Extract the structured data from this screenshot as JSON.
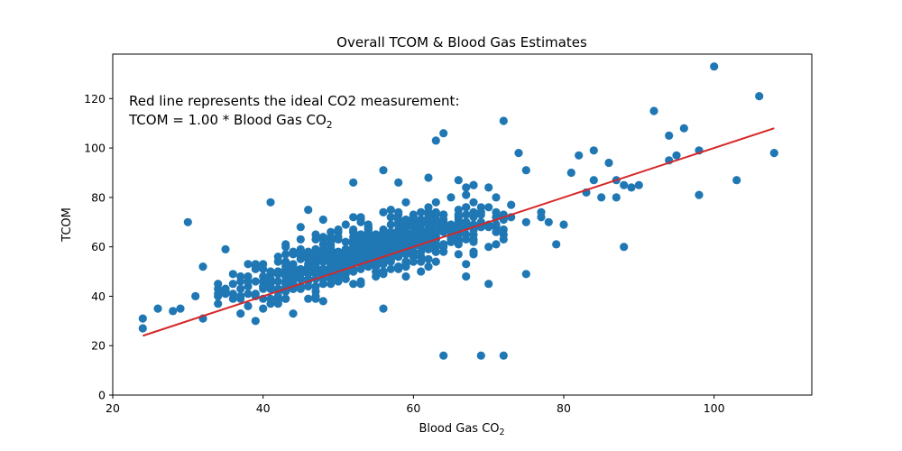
{
  "chart_data": {
    "type": "scatter",
    "title": "Overall TCOM & Blood Gas Estimates",
    "xlabel": "Blood Gas CO",
    "xlabel_sub": "2",
    "ylabel": "TCOM",
    "xlim": [
      20,
      113
    ],
    "ylim": [
      0,
      138
    ],
    "xticks": [
      20,
      40,
      60,
      80,
      100
    ],
    "yticks": [
      0,
      20,
      40,
      60,
      80,
      100,
      120
    ],
    "grid": false,
    "annotation": {
      "line1": "Red line represents the ideal CO2 measurement:",
      "line2": "TCOM = 1.00 * Blood Gas CO",
      "line2_sub": "2"
    },
    "colors": {
      "points": "#1f77b4",
      "fit_line": "#d62728"
    },
    "fit_line": {
      "slope": 1.0,
      "x_range": [
        24,
        108
      ]
    },
    "outliers": [
      [
        24,
        31
      ],
      [
        24,
        27
      ],
      [
        26,
        35
      ],
      [
        28,
        34
      ],
      [
        29,
        35
      ],
      [
        30,
        70
      ],
      [
        31,
        40
      ],
      [
        32,
        52
      ],
      [
        35,
        59
      ],
      [
        39,
        30
      ],
      [
        41,
        78
      ],
      [
        44,
        33
      ],
      [
        56,
        35
      ],
      [
        63,
        103
      ],
      [
        64,
        106
      ],
      [
        64,
        16
      ],
      [
        69,
        16
      ],
      [
        72,
        16
      ],
      [
        72,
        111
      ],
      [
        74,
        98
      ],
      [
        75,
        91
      ],
      [
        75,
        49
      ],
      [
        77,
        74
      ],
      [
        78,
        70
      ],
      [
        79,
        61
      ],
      [
        80,
        69
      ],
      [
        81,
        90
      ],
      [
        82,
        97
      ],
      [
        83,
        82
      ],
      [
        84,
        99
      ],
      [
        84,
        87
      ],
      [
        85,
        80
      ],
      [
        86,
        94
      ],
      [
        87,
        80
      ],
      [
        87,
        87
      ],
      [
        88,
        85
      ],
      [
        88,
        60
      ],
      [
        89,
        84
      ],
      [
        90,
        85
      ],
      [
        92,
        115
      ],
      [
        94,
        105
      ],
      [
        94,
        95
      ],
      [
        95,
        97
      ],
      [
        96,
        108
      ],
      [
        98,
        99
      ],
      [
        98,
        81
      ],
      [
        100,
        133
      ],
      [
        103,
        87
      ],
      [
        106,
        121
      ],
      [
        108,
        98
      ],
      [
        70,
        45
      ],
      [
        67,
        48
      ],
      [
        61,
        50
      ],
      [
        45,
        68
      ],
      [
        46,
        75
      ],
      [
        52,
        86
      ],
      [
        56,
        91
      ],
      [
        58,
        86
      ],
      [
        62,
        88
      ],
      [
        66,
        87
      ],
      [
        68,
        85
      ],
      [
        70,
        84
      ]
    ],
    "cluster": {
      "n": 760,
      "x_range": [
        32,
        77
      ],
      "x_center": 54,
      "x_spread": 9,
      "slope": 0.9,
      "intercept": 10,
      "y_spread": 5.5
    }
  }
}
